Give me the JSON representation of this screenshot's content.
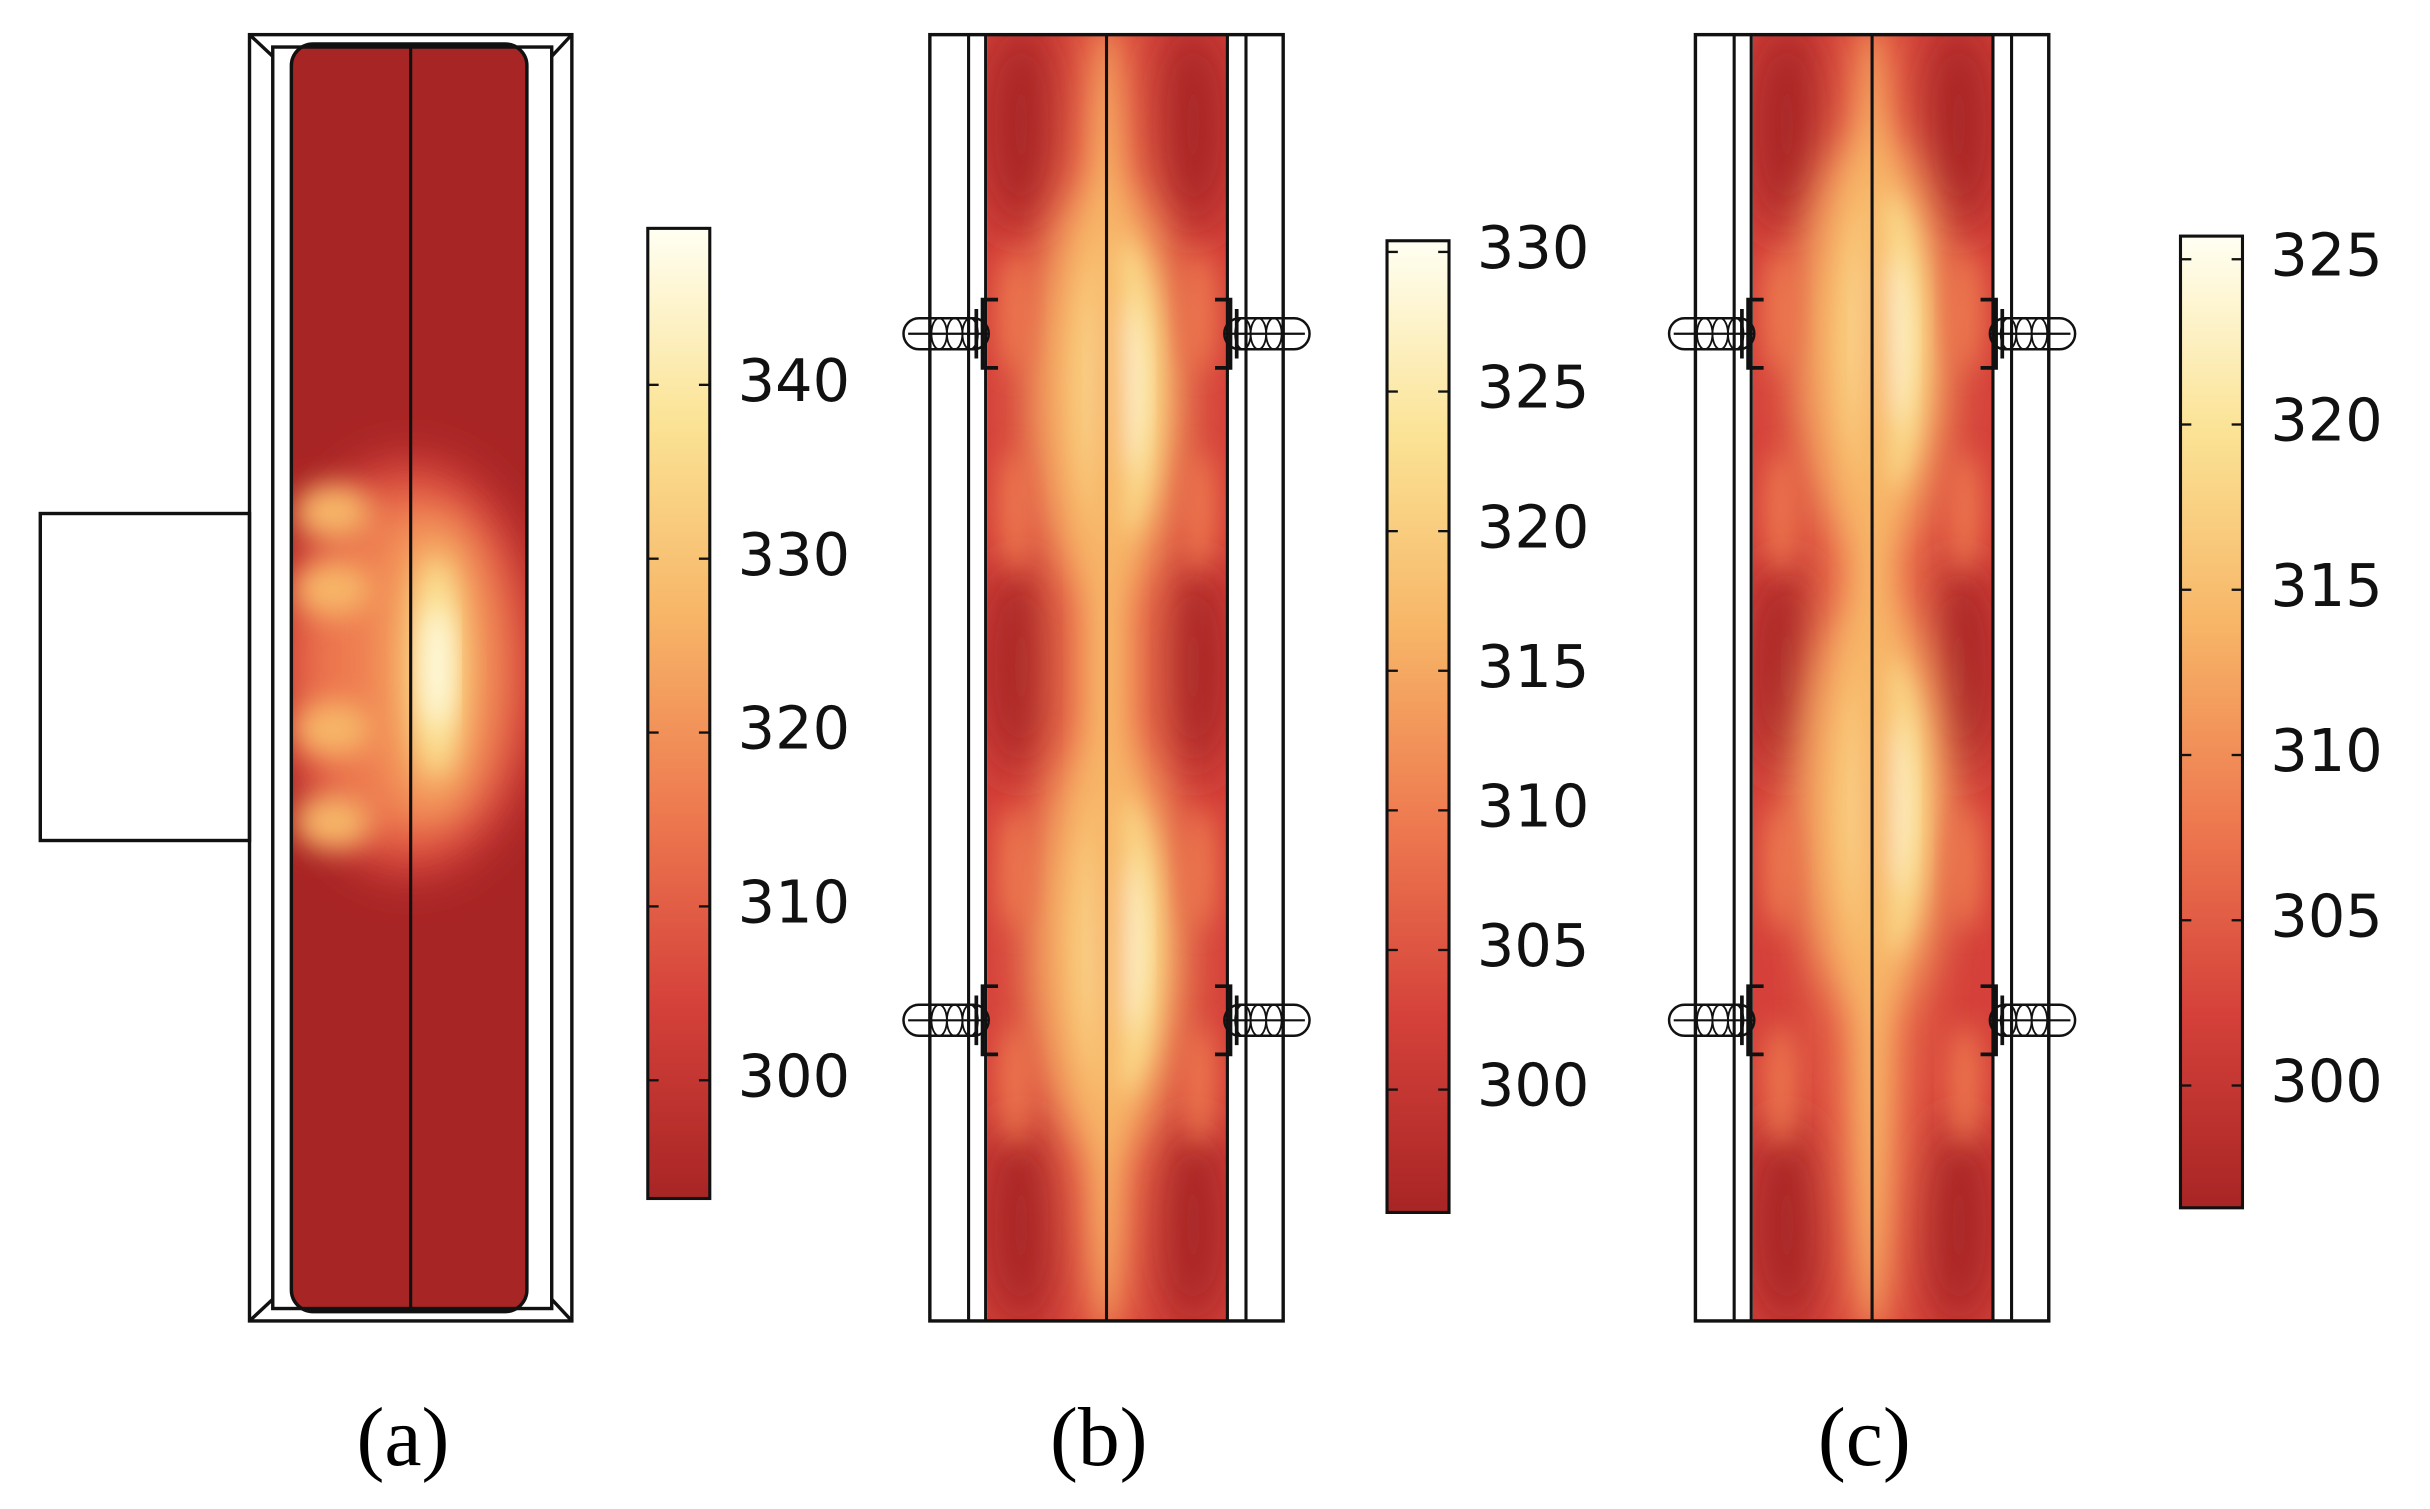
{
  "chart_data": [
    {
      "type": "heatmap",
      "label": "(a)",
      "colormap": [
        "#a82525",
        "#d5413a",
        "#ee7a50",
        "#f7b567",
        "#fbe395",
        "#fffff2"
      ],
      "clim": [
        293.2,
        349
      ],
      "cticks": [
        300,
        310,
        320,
        330,
        340
      ]
    },
    {
      "type": "heatmap",
      "label": "(b)",
      "colormap": [
        "#a82525",
        "#d5413a",
        "#ee7a50",
        "#f7b567",
        "#fbe395",
        "#fffff2"
      ],
      "clim": [
        295.6,
        330.4
      ],
      "cticks": [
        300,
        305,
        310,
        315,
        320,
        325,
        330
      ]
    },
    {
      "type": "heatmap",
      "label": "(c)",
      "colormap": [
        "#a82525",
        "#d5413a",
        "#ee7a50",
        "#f7b567",
        "#fbe395",
        "#fffff2"
      ],
      "clim": [
        296.3,
        325.7
      ],
      "cticks": [
        300,
        305,
        310,
        315,
        320,
        325
      ]
    }
  ]
}
